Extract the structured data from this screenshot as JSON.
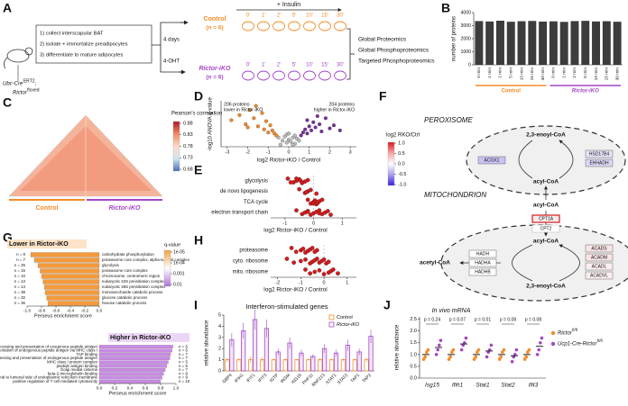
{
  "A": {
    "letter": "A",
    "steps": [
      "1) collect interscapular BAT",
      "2) isolate + immortalize preadipocytes",
      "3) differentiate to mature adipocytes"
    ],
    "mouse_line1": "Ubc-Cre",
    "mouse_sup1": "ERT2",
    "mouse_sep": ";",
    "mouse_line2": "Rictor",
    "mouse_sup2": "floxed",
    "duration": "4 days",
    "treatment": "4-OHT",
    "insulin": "+ Insulin",
    "groups": [
      {
        "name": "Control",
        "n": "(n = 6)",
        "color": "#f28c28"
      },
      {
        "name": "Rictor-iKO",
        "n": "(n = 6)",
        "color": "#a347c4"
      }
    ],
    "timepoints": [
      "0'",
      "1'",
      "2'",
      "5'",
      "10'",
      "15'",
      "30'"
    ],
    "outputs": [
      "Global Proteomics",
      "Global Phosphoproteomics",
      "Targeted Phosphoproteomics"
    ]
  },
  "B": {
    "letter": "B",
    "type": "bar",
    "y_label": "number of proteins",
    "color": "#3c3c3c",
    "categories": [
      "0 min",
      "1 min",
      "2 min",
      "5 min",
      "10 min",
      "15 min",
      "30 min",
      "0 min",
      "1 min",
      "2 min",
      "5 min",
      "10 min",
      "15 min",
      "30 min"
    ],
    "values": [
      3350,
      3320,
      3380,
      3300,
      3340,
      3360,
      3310,
      3330,
      3290,
      3350,
      3370,
      3320,
      3340,
      3300
    ],
    "groups": [
      "Control",
      "Rictor-iKO"
    ],
    "group_colors": [
      "#f28c28",
      "#a347c4"
    ],
    "ylim": [
      0,
      4000
    ],
    "yticks": [
      0,
      1000,
      2000,
      3000,
      4000
    ]
  },
  "C": {
    "letter": "C",
    "legend_title": "Pearson's correlation",
    "legend_ticks": [
      0.88,
      0.83,
      0.78,
      0.73,
      0.68
    ],
    "colors": [
      "#b2182b",
      "#ef8a62",
      "#fddbc7",
      "#d1e5f0",
      "#4a6fb5"
    ],
    "groups": [
      "Control",
      "Rictor-iKO"
    ],
    "group_colors": [
      "#f28c28",
      "#a347c4"
    ]
  },
  "D": {
    "letter": "D",
    "type": "scatter",
    "lower_count": "206 proteins",
    "lower_label": "lower in Rictor-iKO",
    "higher_count": "204 proteins",
    "higher_label": "higher in Rictor-iKO",
    "x_label": "log2 Rictor-iKO / Control",
    "y_label": "-log10 ANOVA q-value",
    "xlim": [
      -3.3,
      3.3
    ],
    "ylim": [
      0,
      4.5
    ],
    "xticks": [
      -3,
      -2,
      -1,
      0,
      1,
      2,
      3
    ],
    "series": [
      {
        "color": "#f28c28",
        "x": [
          -2.8,
          -2.4,
          -2.1,
          -1.9,
          -1.7,
          -1.5,
          -1.3,
          -1.2,
          -1.1,
          -1.0,
          -0.9,
          -0.8,
          -0.7,
          -0.6,
          -1.6,
          -2.0
        ],
        "y": [
          2.6,
          3.1,
          2.2,
          3.6,
          2.8,
          2.0,
          3.3,
          1.7,
          2.5,
          1.4,
          2.1,
          1.6,
          1.3,
          1.1,
          4.0,
          1.9
        ]
      },
      {
        "color": "#7b2fa0",
        "x": [
          0.6,
          0.7,
          0.8,
          0.9,
          1.0,
          1.1,
          1.2,
          1.3,
          1.5,
          1.6,
          1.8,
          2.0,
          2.2,
          2.5,
          1.4,
          0.9
        ],
        "y": [
          1.1,
          1.4,
          1.7,
          1.3,
          2.0,
          1.6,
          2.4,
          1.9,
          2.2,
          1.5,
          2.8,
          1.8,
          2.1,
          1.6,
          3.0,
          2.6
        ]
      },
      {
        "color": "#bdbdbd",
        "x": [
          -0.5,
          -0.3,
          -0.2,
          -0.1,
          0,
          0.1,
          0.2,
          0.3,
          0.4,
          0.5,
          -0.4,
          0.2,
          -0.1,
          0.3,
          0.0
        ],
        "y": [
          0.9,
          0.6,
          1.0,
          0.4,
          0.7,
          0.5,
          0.9,
          0.3,
          0.8,
          0.6,
          0.2,
          0.2,
          1.2,
          1.1,
          1.3
        ]
      }
    ]
  },
  "E": {
    "letter": "E",
    "type": "strip",
    "color": "#d7191c",
    "categories": [
      "glycolysis",
      "de novo lipogenesis",
      "TCA cycle",
      "electron transport chain"
    ],
    "points": [
      [
        -0.9,
        -0.7,
        -0.6,
        -0.5,
        -0.4,
        -0.3,
        -0.2,
        -0.6,
        -0.8,
        -0.45
      ],
      [
        -0.5,
        -0.3,
        -0.2,
        -0.1,
        0.1,
        -0.25
      ],
      [
        -0.2,
        -0.1,
        0,
        0.05,
        0.1,
        0.15,
        0.2,
        0.3,
        0.0,
        0.1
      ],
      [
        -0.6,
        -0.4,
        -0.3,
        -0.2,
        -0.1,
        0,
        0.1,
        0.2,
        0.3,
        0.4,
        0.5,
        0.6,
        0.2,
        -0.2
      ]
    ],
    "x_label": "log2 Rictor-iKO / Control",
    "xlim": [
      -1.5,
      1.5
    ],
    "xticks": [
      -1,
      0,
      1
    ]
  },
  "F": {
    "letter": "F",
    "colorbar_title": "log2 RKO/Ctrl",
    "colorbar_ticks": [
      {
        "value": 1,
        "label": "1.0"
      },
      0.5,
      {
        "value": 0,
        "label": "0.0"
      },
      -0.5,
      {
        "value": -1,
        "label": "-1.0"
      }
    ],
    "colorbar_colors": [
      "#e0141e",
      "#f4a6a6",
      "#ffffff",
      "#a9a0f0",
      "#3a1ee0"
    ],
    "peroxisome": {
      "label": "PEROXISOME",
      "metabolites": [
        "2,3-enoyl-CoA",
        "acyl-CoA"
      ],
      "enzymes": [
        {
          "name": "ACOX1",
          "color": "#c9c3f2"
        },
        {
          "name": "HSD17B4",
          "color": "#e4e2f6"
        },
        {
          "name": "EHHADH",
          "color": "#dcd6f4"
        }
      ]
    },
    "transport": {
      "metabolite": "acyl-CoA",
      "enzymes": [
        {
          "name": "CPT1A",
          "color": "#f6eaea"
        },
        {
          "name": "CPT2",
          "color": "#ffffff"
        }
      ]
    },
    "mitochondrion": {
      "label": "MITOCHONDRION",
      "metabolites": [
        "acyl-CoA",
        "acetyl-CoA",
        "2,3-enoyl-CoA"
      ],
      "enzymes": [
        {
          "name": "HADH",
          "color": "#ffffff"
        },
        {
          "name": "HADHA",
          "color": "#ffffff"
        },
        {
          "name": "HADHB",
          "color": "#ffffff"
        },
        {
          "name": "ACADS",
          "color": "#f7e4e4"
        },
        {
          "name": "ACADM",
          "color": "#f7e4e4"
        },
        {
          "name": "ACADL",
          "color": "#fbeeee"
        },
        {
          "name": "ACADVL",
          "color": "#fbeeee"
        }
      ]
    }
  },
  "G": {
    "letter": "G",
    "x_label": "Perseus enrichment score",
    "legend_title": "q-value",
    "legend_ticks": [
      {
        "value": 1e-05,
        "label": "1e-05"
      },
      {
        "value": 0.0001,
        "label": "1e-04"
      },
      0.001,
      0.01
    ],
    "legend_colors": [
      "#f5a040",
      "#ffffff",
      "#b070d8"
    ],
    "lower": {
      "title": "Lower in Rictor-iKO",
      "color": "#f39a3c",
      "terms": [
        "carbohydrate phosphorylation",
        "proteasome core complex, alpha-subunit complex",
        "glycolysis",
        "proteasome core complex",
        "chromosome, centromeric region",
        "eukaryotic 43S preinitiation complex",
        "eukaryotic 48S preinitiation complex",
        "monosaccharide catabolic process",
        "glucose catabolic process",
        "hexose catabolic process"
      ],
      "n_labels": [
        "n = 8",
        "n = 7",
        "n = 25",
        "n = 15",
        "n = 10",
        "n = 13",
        "n = 14",
        "n = 38",
        "n = 32",
        "n = 36"
      ],
      "values": [
        -0.95,
        -0.9,
        -0.85,
        -0.82,
        -0.8,
        -0.78,
        -0.76,
        -0.75,
        -0.73,
        -0.71
      ],
      "xlim": [
        -1,
        0
      ],
      "xticks": [
        {
          "value": -1,
          "label": "-1.0"
        },
        -0.8,
        -0.6,
        -0.4,
        -0.2,
        {
          "value": 0,
          "label": "0.0"
        }
      ]
    },
    "higher": {
      "title": "Higher in Rictor-iKO",
      "color": "#c98ae6",
      "terms": [
        "antigen processing and presentation of exogenous peptide antigen",
        "antigen processing and presentation of endogenous peptide antigen via MHC class I",
        "TAP binding",
        "antigen processing and presentation of endogenous peptide antigen",
        "MHC class I protein complex",
        "peptide antigen binding",
        "Golgi medial cisterna",
        "beta-2-microglobulin binding",
        "integral to lumenal side of endoplasmic reticulum membrane",
        "positive regulation of T cell mediated cytotoxicity"
      ],
      "n_labels": [
        "n = 5",
        "n = 6",
        "n = 7",
        "n = 7",
        "n = 5",
        "n = 5",
        "n = 7",
        "n = 8",
        "n = 9",
        "n = 10"
      ],
      "values": [
        0.96,
        0.95,
        0.93,
        0.92,
        0.9,
        0.88,
        0.86,
        0.84,
        0.82,
        0.8
      ],
      "xlim": [
        0,
        1
      ],
      "xticks": [
        {
          "value": 0,
          "label": "0.0"
        },
        0.2,
        0.4,
        0.6,
        0.8,
        {
          "value": 1,
          "label": "1.0"
        }
      ]
    }
  },
  "H": {
    "letter": "H",
    "type": "strip",
    "color": "#d7191c",
    "categories": [
      "proteasome",
      "cyto. ribosome",
      "mito. ribosome"
    ],
    "points": [
      [
        -1.4,
        -1.2,
        -1.0,
        -0.9,
        -0.8,
        -0.7,
        -0.6,
        -0.5,
        -0.4,
        -0.3
      ],
      [
        -1.6,
        -1.3,
        -1.0,
        -0.8,
        -0.6,
        -0.5,
        -0.4,
        -0.3,
        -0.2,
        -0.1,
        0,
        0.1,
        0.2
      ],
      [
        -0.8,
        -0.6,
        -0.4,
        -0.2,
        0,
        0.2,
        0.3,
        0.4,
        0.6
      ]
    ],
    "x_label": "log2 Rictor-iKO / Control",
    "xlim": [
      -2.3,
      1.4
    ],
    "xticks": [
      -2,
      -1,
      0,
      1
    ]
  },
  "I": {
    "letter": "I",
    "type": "bar",
    "title": "Interferon-stimulated genes",
    "y_label": "relative abundance",
    "categories": [
      "GBP4",
      "IFIH1",
      "IFIT1",
      "IFIT3",
      "IGTP",
      "IRGM",
      "ISG15",
      "PHF11",
      "RNF213",
      "STAT1",
      "STAT2",
      "TAP1",
      "TAP2"
    ],
    "series": [
      {
        "name": "Control",
        "color": "#f28c28",
        "values": [
          1,
          1,
          1,
          1,
          1,
          1,
          1,
          1,
          1,
          1,
          1,
          1,
          1
        ],
        "errors": [
          0.2,
          0.15,
          0.25,
          0.2,
          0.1,
          0.15,
          0.1,
          0.1,
          0.15,
          0.1,
          0.15,
          0.1,
          0.2
        ]
      },
      {
        "name": "Rictor-iKO",
        "color": "#a347c4",
        "values": [
          2.8,
          3.6,
          4.6,
          3.8,
          1.7,
          2.5,
          1.6,
          1.3,
          2.0,
          1.6,
          2.3,
          1.7,
          3.1
        ],
        "errors": [
          0.6,
          0.7,
          0.9,
          0.8,
          0.3,
          0.5,
          0.3,
          0.2,
          0.4,
          0.3,
          0.5,
          0.3,
          0.6
        ]
      }
    ],
    "ylim": [
      0,
      5
    ],
    "yticks": [
      0,
      1,
      2,
      3,
      4,
      5
    ]
  },
  "J": {
    "letter": "J",
    "type": "dot",
    "title": "In vivo mRNA",
    "y_label": "relative abundance",
    "categories": [
      "Isg15",
      "Ifih1",
      "Stat1",
      "Stat2",
      "Ifit3"
    ],
    "p_labels": [
      "p = 0.24",
      "p = 0.07",
      "p = 0.01",
      "p = 0.08",
      "p = 0.08"
    ],
    "series": [
      {
        "name": "Rictor",
        "name_sup": "fl/fl",
        "color": "#f28c28",
        "means": [
          1,
          1,
          1,
          1,
          1
        ],
        "points": [
          [
            0.8,
            0.9,
            1.1,
            1.2
          ],
          [
            0.8,
            0.9,
            1.1,
            1.2
          ],
          [
            0.8,
            0.9,
            1.1,
            1.2
          ],
          [
            0.8,
            0.9,
            1.1,
            1.2
          ],
          [
            0.8,
            0.9,
            1.1,
            1.2
          ]
        ]
      },
      {
        "name": "Ucp1-Cre-Rictor",
        "name_sup": "fl/fl",
        "color": "#a347c4",
        "means": [
          1.3,
          1.45,
          1.15,
          0.95,
          1.35
        ],
        "points": [
          [
            1.0,
            1.2,
            1.4,
            1.6
          ],
          [
            1.2,
            1.4,
            1.5,
            1.7
          ],
          [
            0.9,
            1.1,
            1.2,
            1.4
          ],
          [
            0.7,
            0.9,
            1.0,
            1.2
          ],
          [
            1.0,
            1.2,
            1.5,
            1.7
          ]
        ]
      }
    ],
    "ylim": [
      0,
      2.6
    ],
    "yticks": [
      {
        "value": 0,
        "label": "0.0"
      },
      0.5,
      {
        "value": 1,
        "label": "1.0"
      },
      1.5,
      {
        "value": 2,
        "label": "2.0"
      },
      2.5
    ]
  }
}
